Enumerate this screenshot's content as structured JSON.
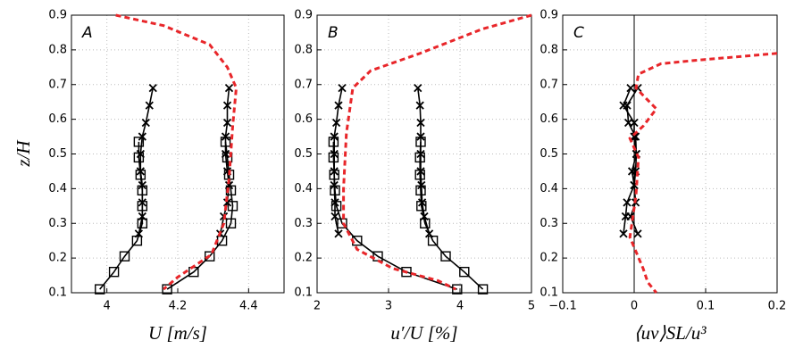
{
  "chart_data": [
    {
      "type": "line",
      "label": "A",
      "xlabel": "U [m/s]",
      "ylabel": "z/H",
      "xlim": [
        3.9,
        4.5
      ],
      "xticks": [
        4,
        4.2,
        4.4
      ],
      "ylim": [
        0.1,
        0.9
      ],
      "yticks": [
        0.1,
        0.2,
        0.3,
        0.4,
        0.5,
        0.6,
        0.7,
        0.8,
        0.9
      ],
      "grid": true,
      "series": [
        {
          "color": "#000000",
          "marker": "square",
          "x": [
            3.98,
            4.02,
            4.05,
            4.085,
            4.1,
            4.1,
            4.1,
            4.095,
            4.09,
            4.09
          ],
          "y": [
            0.11,
            0.16,
            0.205,
            0.25,
            0.3,
            0.35,
            0.395,
            0.44,
            0.49,
            0.535
          ]
        },
        {
          "color": "#000000",
          "marker": "x",
          "x": [
            4.09,
            4.1,
            4.1,
            4.1,
            4.095,
            4.095,
            4.1,
            4.11,
            4.12,
            4.13
          ],
          "y": [
            0.27,
            0.32,
            0.36,
            0.41,
            0.45,
            0.5,
            0.55,
            0.59,
            0.64,
            0.69
          ]
        },
        {
          "color": "#000000",
          "marker": "square",
          "x": [
            4.17,
            4.245,
            4.29,
            4.325,
            4.35,
            4.355,
            4.35,
            4.345,
            4.34,
            4.335
          ],
          "y": [
            0.11,
            0.16,
            0.205,
            0.25,
            0.3,
            0.35,
            0.395,
            0.44,
            0.49,
            0.535
          ]
        },
        {
          "color": "#000000",
          "marker": "x",
          "x": [
            4.32,
            4.33,
            4.34,
            4.345,
            4.34,
            4.335,
            4.335,
            4.34,
            4.34,
            4.345
          ],
          "y": [
            0.27,
            0.32,
            0.36,
            0.41,
            0.45,
            0.5,
            0.55,
            0.59,
            0.64,
            0.69
          ]
        },
        {
          "color": "#e8262a",
          "dashed": true,
          "x": [
            4.025,
            4.16,
            4.29,
            4.34,
            4.365,
            4.355,
            4.345,
            4.33,
            4.295,
            4.2,
            4.16
          ],
          "y": [
            0.9,
            0.87,
            0.815,
            0.75,
            0.69,
            0.58,
            0.43,
            0.3,
            0.21,
            0.145,
            0.11
          ]
        }
      ]
    },
    {
      "type": "line",
      "label": "B",
      "xlabel": "u′/U [%]",
      "xlim": [
        2,
        5
      ],
      "xticks": [
        2,
        3,
        4,
        5
      ],
      "ylim": [
        0.1,
        0.9
      ],
      "yticks": [
        0.1,
        0.2,
        0.3,
        0.4,
        0.5,
        0.6,
        0.7,
        0.8,
        0.9
      ],
      "grid": true,
      "series": [
        {
          "color": "#000000",
          "marker": "square",
          "x": [
            3.96,
            3.25,
            2.85,
            2.56,
            2.35,
            2.27,
            2.25,
            2.24,
            2.23,
            2.23
          ],
          "y": [
            0.11,
            0.16,
            0.205,
            0.25,
            0.3,
            0.35,
            0.395,
            0.44,
            0.49,
            0.535
          ]
        },
        {
          "color": "#000000",
          "marker": "x",
          "x": [
            2.3,
            2.25,
            2.25,
            2.24,
            2.24,
            2.24,
            2.24,
            2.27,
            2.3,
            2.35
          ],
          "y": [
            0.27,
            0.32,
            0.36,
            0.41,
            0.45,
            0.5,
            0.55,
            0.59,
            0.64,
            0.69
          ]
        },
        {
          "color": "#000000",
          "marker": "square",
          "x": [
            4.32,
            4.06,
            3.8,
            3.62,
            3.51,
            3.46,
            3.45,
            3.44,
            3.44,
            3.45
          ],
          "y": [
            0.11,
            0.16,
            0.205,
            0.25,
            0.3,
            0.35,
            0.395,
            0.44,
            0.49,
            0.535
          ]
        },
        {
          "color": "#000000",
          "marker": "x",
          "x": [
            3.57,
            3.5,
            3.47,
            3.46,
            3.45,
            3.45,
            3.45,
            3.45,
            3.44,
            3.41
          ],
          "y": [
            0.27,
            0.32,
            0.36,
            0.41,
            0.45,
            0.5,
            0.55,
            0.59,
            0.64,
            0.69
          ]
        },
        {
          "color": "#e8262a",
          "dashed": true,
          "x": [
            5,
            4.31,
            3.44,
            2.75,
            2.5,
            2.41,
            2.37,
            2.37,
            2.56,
            3.06,
            3.69,
            3.94
          ],
          "y": [
            0.9,
            0.86,
            0.79,
            0.74,
            0.69,
            0.56,
            0.4,
            0.3,
            0.225,
            0.17,
            0.135,
            0.11
          ]
        }
      ]
    },
    {
      "type": "line",
      "label": "C",
      "xlabel": "⟨uv⟩SL/u³",
      "xlim": [
        -0.1,
        0.2
      ],
      "xticks": [
        {
          "value": -0.1,
          "label": "−0.1"
        },
        0,
        0.1,
        0.2
      ],
      "ylim": [
        0.1,
        0.9
      ],
      "yticks": [
        0.1,
        0.2,
        0.3,
        0.4,
        0.5,
        0.6,
        0.7,
        0.8,
        0.9
      ],
      "grid": true,
      "vline": 0,
      "series": [
        {
          "color": "#000000",
          "marker": "x",
          "x": [
            0.005,
            -0.01,
            -0.008,
            0.002,
            0.003,
            0.002,
            0,
            0.002,
            -0.005,
            0.005
          ],
          "y": [
            0.69,
            0.64,
            0.59,
            0.55,
            0.5,
            0.45,
            0.41,
            0.36,
            0.32,
            0.27
          ]
        },
        {
          "color": "#000000",
          "marker": "x",
          "x": [
            -0.005,
            -0.015,
            0,
            0,
            0.003,
            -0.003,
            0,
            -0.01,
            -0.012,
            -0.015
          ],
          "y": [
            0.69,
            0.64,
            0.59,
            0.55,
            0.5,
            0.45,
            0.41,
            0.36,
            0.32,
            0.27
          ]
        },
        {
          "color": "#e8262a",
          "dashed": true,
          "x": [
            0.2,
            0.0875,
            0.0375,
            0.006,
            0.0025,
            0.031,
            0.0125,
            -0.006,
            0.006,
            0.0025,
            -0.006,
            0.0125,
            0.019,
            0.031
          ],
          "y": [
            0.79,
            0.77,
            0.76,
            0.73,
            0.69,
            0.63,
            0.58,
            0.545,
            0.49,
            0.38,
            0.26,
            0.17,
            0.13,
            0.1
          ]
        }
      ]
    }
  ]
}
